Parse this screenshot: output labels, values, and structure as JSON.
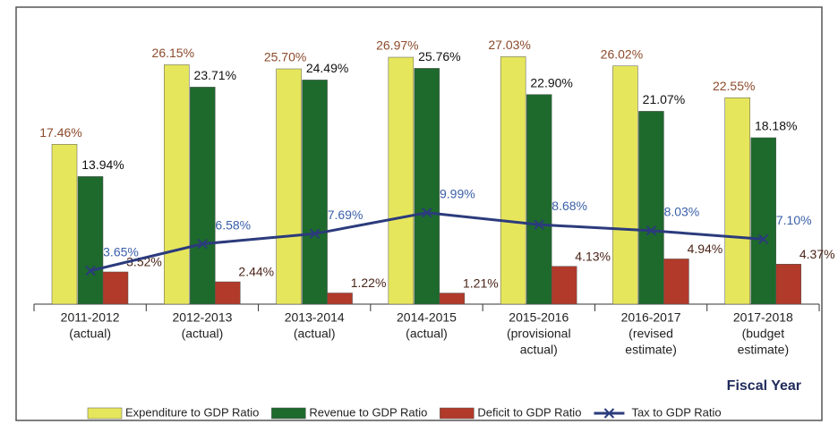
{
  "chart_data": {
    "type": "bar-line",
    "x_label": "Fiscal Year",
    "categories": [
      [
        "2011-2012",
        "(actual)"
      ],
      [
        "2012-2013",
        "(actual)"
      ],
      [
        "2013-2014",
        "(actual)"
      ],
      [
        "2014-2015",
        "(actual)"
      ],
      [
        "2015-2016",
        "(provisional",
        "actual)"
      ],
      [
        "2016-2017",
        "(revised",
        "estimate)"
      ],
      [
        "2017-2018",
        "(budget",
        "estimate)"
      ]
    ],
    "ylim": [
      0,
      30
    ],
    "series": [
      {
        "name": "Expenditure to GDP Ratio",
        "type": "bar",
        "color": "#e6e65c",
        "label_color": "#8b4a2b",
        "values": [
          17.46,
          26.15,
          25.7,
          26.97,
          27.03,
          26.02,
          22.55
        ],
        "value_labels": [
          "17.46%",
          "26.15%",
          "25.70%",
          "26.97%",
          "27.03%",
          "26.02%",
          "22.55%"
        ]
      },
      {
        "name": "Revenue to GDP Ratio",
        "type": "bar",
        "color": "#1d6a2c",
        "label_color": "#111111",
        "values": [
          13.94,
          23.71,
          24.49,
          25.76,
          22.9,
          21.07,
          18.18
        ],
        "value_labels": [
          "13.94%",
          "23.71%",
          "24.49%",
          "25.76%",
          "22.90%",
          "21.07%",
          "18.18%"
        ]
      },
      {
        "name": "Deficit to GDP Ratio",
        "type": "bar",
        "color": "#b13a2a",
        "label_color": "#4a2418",
        "values": [
          3.52,
          2.44,
          1.22,
          1.21,
          4.13,
          4.94,
          4.37
        ],
        "value_labels": [
          "3.52%",
          "2.44%",
          "1.22%",
          "1.21%",
          "4.13%",
          "4.94%",
          "4.37%"
        ]
      },
      {
        "name": "Tax to GDP Ratio",
        "type": "line",
        "color": "#2b3b7c",
        "label_color": "#3a5fa8",
        "values": [
          3.65,
          6.58,
          7.69,
          9.99,
          8.68,
          8.03,
          7.1
        ],
        "value_labels": [
          "3.65%",
          "6.58%",
          "7.69%",
          "9.99%",
          "8.68%",
          "8.03%",
          "7.10%"
        ]
      }
    ]
  }
}
